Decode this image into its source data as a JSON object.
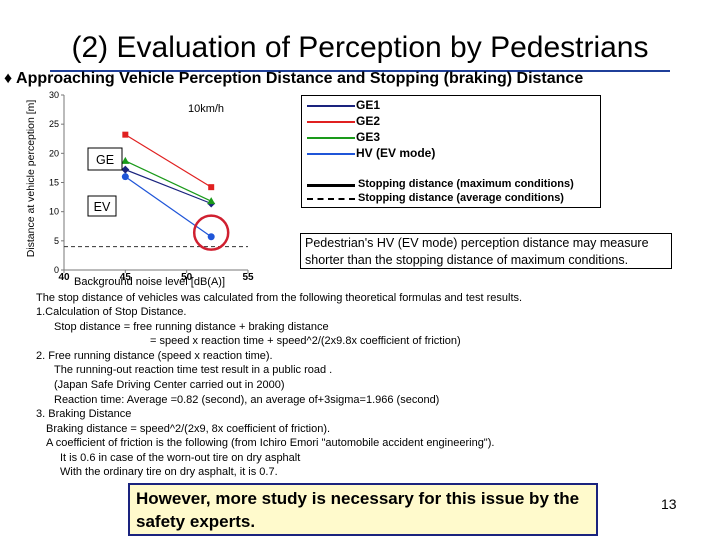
{
  "slide": {
    "title": "(2) Evaluation of Perception by Pedestrians",
    "subtitle": "♦ Approaching Vehicle Perception Distance and Stopping (braking) Distance",
    "note": "Pedestrian's HV (EV mode) perception distance may measure shorter than the stopping distance of maximum conditions.",
    "body_lines": [
      "Background noise level [dB(A)]",
      "The stop distance of vehicles was calculated from the following theoretical formulas and test results.",
      "1.Calculation of Stop Distance.",
      "Stop distance = free running distance + braking distance",
      "= speed x reaction time + speed^2/(2x9.8x coefficient of friction)",
      "2. Free running distance (speed x reaction time).",
      "The running-out reaction time test result in a public road .",
      "(Japan Safe Driving Center carried out in 2000)",
      "Reaction time: Average =0.82 (second), an average of+3sigma=1.966 (second)",
      "3. Braking Distance",
      "Braking distance = speed^2/(2x9, 8x coefficient of friction).",
      "A coefficient of friction is the following (from Ichiro Emori \"automobile accident engineering\").",
      "It is 0.6 in case of the worn-out tire on dry asphalt",
      "With the ordinary tire on dry asphalt, it is 0.7."
    ],
    "conclusion": "However, more study is necessary for this issue by the safety experts.",
    "page_number": "13"
  },
  "chart_data": {
    "type": "scatter",
    "ylabel": "Distance at vehicle perception [m]",
    "ylim": [
      0,
      30
    ],
    "xlim": [
      40,
      55
    ],
    "y_ticks": [
      "30",
      "25",
      "20",
      "15",
      "10",
      "5",
      "0"
    ],
    "x_ticks": [
      "40",
      "45",
      "50",
      "55"
    ],
    "annotations": {
      "speed": "10km/h",
      "ge_label": "GE",
      "ev_label": "EV"
    },
    "series": [
      {
        "name": "GE1",
        "color": "#1a237e",
        "marker": "diamond",
        "x": [
          45,
          52
        ],
        "y": [
          17.2,
          11.4
        ]
      },
      {
        "name": "GE2",
        "color": "#e02020",
        "marker": "square",
        "x": [
          45,
          52
        ],
        "y": [
          23.2,
          14.2
        ]
      },
      {
        "name": "GE3",
        "color": "#1a9a1a",
        "marker": "triangle",
        "x": [
          45,
          52
        ],
        "y": [
          18.7,
          11.8
        ]
      },
      {
        "name": "HV (EV mode)",
        "color": "#1f55d8",
        "marker": "circle",
        "x": [
          45,
          52
        ],
        "y": [
          16.0,
          5.7
        ]
      }
    ],
    "reference_lines": [
      {
        "name": "Stopping distance (maximum conditions)",
        "style": "solid"
      },
      {
        "name": "Stopping distance (average conditions)",
        "style": "dashed",
        "y": 4.0
      }
    ],
    "highlight": {
      "x": 52,
      "y": 6.4,
      "color": "#d02030"
    }
  }
}
